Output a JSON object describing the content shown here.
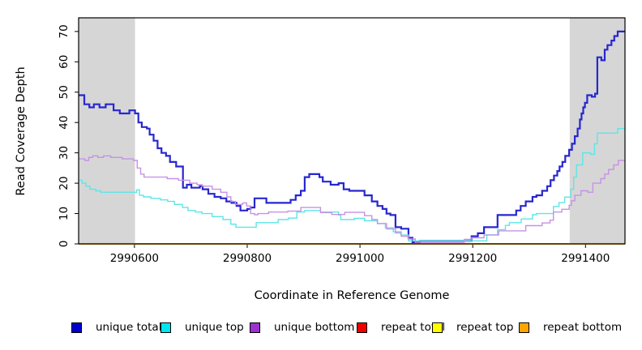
{
  "chart_data": {
    "type": "line",
    "step": true,
    "title": "",
    "xlabel": "Coordinate in Reference Genome",
    "ylabel": "Read Coverage Depth",
    "xlim": [
      2990501,
      2991470
    ],
    "ylim": [
      0,
      74.5
    ],
    "x_ticks": [
      "2990600",
      "2990800",
      "2991000",
      "2991200",
      "2991400"
    ],
    "x_tick_values": [
      2990600,
      2990800,
      2991000,
      2991200,
      2991400
    ],
    "y_ticks": [
      "0",
      "10",
      "20",
      "30",
      "40",
      "50",
      "60",
      "70"
    ],
    "y_tick_values": [
      0,
      10,
      20,
      30,
      40,
      50,
      60,
      70
    ],
    "grid": false,
    "legend_position": "bottom",
    "shaded_regions": [
      {
        "from": 2990501,
        "to": 2990601,
        "color": "#d6d6d6"
      },
      {
        "from": 2991372,
        "to": 2991470,
        "color": "#d6d6d6"
      }
    ],
    "series": [
      {
        "name": "unique total",
        "color": "#2727cf",
        "legend_color": "#0000cd",
        "line_width": 2.2,
        "points": [
          [
            2990501,
            49
          ],
          [
            2990511,
            46
          ],
          [
            2990520,
            45
          ],
          [
            2990528,
            46
          ],
          [
            2990538,
            45
          ],
          [
            2990549,
            46
          ],
          [
            2990563,
            44
          ],
          [
            2990574,
            43
          ],
          [
            2990591,
            44
          ],
          [
            2990601,
            43
          ],
          [
            2990607,
            40
          ],
          [
            2990613,
            38.5
          ],
          [
            2990622,
            38
          ],
          [
            2990627,
            36
          ],
          [
            2990634,
            34
          ],
          [
            2990641,
            31.5
          ],
          [
            2990648,
            30
          ],
          [
            2990656,
            29
          ],
          [
            2990663,
            27
          ],
          [
            2990674,
            25.5
          ],
          [
            2990686,
            18.5
          ],
          [
            2990693,
            19.5
          ],
          [
            2990701,
            18.5
          ],
          [
            2990716,
            19
          ],
          [
            2990721,
            18
          ],
          [
            2990731,
            16.5
          ],
          [
            2990742,
            15.5
          ],
          [
            2990753,
            15
          ],
          [
            2990763,
            14
          ],
          [
            2990772,
            13.5
          ],
          [
            2990781,
            12.5
          ],
          [
            2990788,
            11
          ],
          [
            2990800,
            11.5
          ],
          [
            2990806,
            12
          ],
          [
            2990813,
            15
          ],
          [
            2990834,
            13.5
          ],
          [
            2990877,
            14.5
          ],
          [
            2990886,
            16
          ],
          [
            2990895,
            17.5
          ],
          [
            2990902,
            22
          ],
          [
            2990910,
            23
          ],
          [
            2990928,
            22
          ],
          [
            2990934,
            20.5
          ],
          [
            2990948,
            19.5
          ],
          [
            2990962,
            20
          ],
          [
            2990971,
            18
          ],
          [
            2990981,
            17.5
          ],
          [
            2991008,
            16
          ],
          [
            2991021,
            14
          ],
          [
            2991031,
            12.5
          ],
          [
            2991040,
            11.5
          ],
          [
            2991047,
            10
          ],
          [
            2991054,
            9.5
          ],
          [
            2991063,
            5.5
          ],
          [
            2991073,
            5
          ],
          [
            2991086,
            2
          ],
          [
            2991093,
            0.5
          ],
          [
            2991106,
            1
          ],
          [
            2991198,
            2.5
          ],
          [
            2991209,
            3.5
          ],
          [
            2991220,
            5.5
          ],
          [
            2991244,
            9.5
          ],
          [
            2991277,
            11
          ],
          [
            2991285,
            12.5
          ],
          [
            2991294,
            14
          ],
          [
            2991306,
            15.5
          ],
          [
            2991313,
            16
          ],
          [
            2991323,
            17.5
          ],
          [
            2991332,
            19
          ],
          [
            2991338,
            21
          ],
          [
            2991344,
            22.5
          ],
          [
            2991350,
            24
          ],
          [
            2991354,
            25.5
          ],
          [
            2991359,
            27
          ],
          [
            2991364,
            29
          ],
          [
            2991371,
            31
          ],
          [
            2991376,
            33
          ],
          [
            2991381,
            35.5
          ],
          [
            2991386,
            38
          ],
          [
            2991390,
            41
          ],
          [
            2991393,
            43
          ],
          [
            2991396,
            45
          ],
          [
            2991399,
            46.5
          ],
          [
            2991403,
            49
          ],
          [
            2991411,
            48.5
          ],
          [
            2991417,
            49.5
          ],
          [
            2991421,
            61.5
          ],
          [
            2991428,
            60.5
          ],
          [
            2991434,
            64
          ],
          [
            2991439,
            65.5
          ],
          [
            2991446,
            67
          ],
          [
            2991451,
            68.5
          ],
          [
            2991457,
            70
          ]
        ]
      },
      {
        "name": "unique top",
        "color": "#5fe5e5",
        "legend_color": "#00e5ee",
        "line_width": 1.4,
        "points": [
          [
            2990501,
            21
          ],
          [
            2990507,
            20
          ],
          [
            2990514,
            19
          ],
          [
            2990521,
            18
          ],
          [
            2990531,
            17.5
          ],
          [
            2990540,
            17
          ],
          [
            2990600,
            17
          ],
          [
            2990604,
            17.8
          ],
          [
            2990609,
            16
          ],
          [
            2990616,
            15.5
          ],
          [
            2990629,
            15
          ],
          [
            2990646,
            14.5
          ],
          [
            2990659,
            14
          ],
          [
            2990671,
            13
          ],
          [
            2990685,
            12
          ],
          [
            2990695,
            11
          ],
          [
            2990708,
            10.5
          ],
          [
            2990720,
            10
          ],
          [
            2990738,
            9
          ],
          [
            2990757,
            8
          ],
          [
            2990771,
            6.5
          ],
          [
            2990780,
            5.5
          ],
          [
            2990816,
            7
          ],
          [
            2990855,
            8
          ],
          [
            2990873,
            8.5
          ],
          [
            2990888,
            10.5
          ],
          [
            2990902,
            11
          ],
          [
            2990930,
            10.5
          ],
          [
            2990962,
            9.5
          ],
          [
            2990966,
            8
          ],
          [
            2990990,
            8.4
          ],
          [
            2991008,
            7.6
          ],
          [
            2991031,
            6.7
          ],
          [
            2991045,
            5.3
          ],
          [
            2991059,
            4
          ],
          [
            2991073,
            2.9
          ],
          [
            2991086,
            1
          ],
          [
            2991220,
            1
          ],
          [
            2991225,
            3
          ],
          [
            2991244,
            4.7
          ],
          [
            2991258,
            6.1
          ],
          [
            2991265,
            7
          ],
          [
            2991286,
            8.2
          ],
          [
            2991306,
            9.6
          ],
          [
            2991313,
            10
          ],
          [
            2991343,
            12.3
          ],
          [
            2991353,
            13.6
          ],
          [
            2991363,
            15.4
          ],
          [
            2991374,
            18
          ],
          [
            2991379,
            22
          ],
          [
            2991384,
            26
          ],
          [
            2991395,
            30
          ],
          [
            2991409,
            29.5
          ],
          [
            2991416,
            33
          ],
          [
            2991421,
            36.5
          ],
          [
            2991457,
            38
          ]
        ]
      },
      {
        "name": "unique bottom",
        "color": "#c792e2",
        "legend_color": "#9a32cd",
        "line_width": 1.4,
        "points": [
          [
            2990501,
            28
          ],
          [
            2990512,
            27.5
          ],
          [
            2990519,
            28.5
          ],
          [
            2990526,
            29
          ],
          [
            2990535,
            28.5
          ],
          [
            2990545,
            29
          ],
          [
            2990558,
            28.5
          ],
          [
            2990578,
            28
          ],
          [
            2990598,
            27.5
          ],
          [
            2990605,
            25
          ],
          [
            2990611,
            23
          ],
          [
            2990617,
            22
          ],
          [
            2990658,
            21.5
          ],
          [
            2990678,
            21
          ],
          [
            2990698,
            20
          ],
          [
            2990711,
            19.5
          ],
          [
            2990720,
            19
          ],
          [
            2990738,
            18
          ],
          [
            2990753,
            17
          ],
          [
            2990764,
            15.5
          ],
          [
            2990771,
            14
          ],
          [
            2990779,
            13
          ],
          [
            2990792,
            13.5
          ],
          [
            2990799,
            12.5
          ],
          [
            2990806,
            10
          ],
          [
            2990813,
            9.6
          ],
          [
            2990819,
            10
          ],
          [
            2990838,
            10.5
          ],
          [
            2990872,
            10.8
          ],
          [
            2990895,
            12
          ],
          [
            2990930,
            10.3
          ],
          [
            2990950,
            9.7
          ],
          [
            2990973,
            10.4
          ],
          [
            2991008,
            9.3
          ],
          [
            2991021,
            8
          ],
          [
            2991031,
            6.7
          ],
          [
            2991047,
            4.9
          ],
          [
            2991063,
            3.6
          ],
          [
            2991073,
            2.5
          ],
          [
            2991086,
            1.6
          ],
          [
            2991098,
            0.5
          ],
          [
            2991185,
            1.5
          ],
          [
            2991198,
            2
          ],
          [
            2991220,
            2.9
          ],
          [
            2991246,
            4.3
          ],
          [
            2991294,
            6
          ],
          [
            2991323,
            6.9
          ],
          [
            2991337,
            7.8
          ],
          [
            2991343,
            10.5
          ],
          [
            2991358,
            11.4
          ],
          [
            2991371,
            12.7
          ],
          [
            2991375,
            14.2
          ],
          [
            2991381,
            16
          ],
          [
            2991392,
            17.5
          ],
          [
            2991404,
            17
          ],
          [
            2991413,
            20
          ],
          [
            2991427,
            21.5
          ],
          [
            2991434,
            23
          ],
          [
            2991441,
            24.5
          ],
          [
            2991450,
            26
          ],
          [
            2991458,
            27.5
          ]
        ]
      },
      {
        "name": "repeat total",
        "color": "#dd0000",
        "legend_color": "#ee0000",
        "line_width": 1.4,
        "points": [
          [
            2990501,
            0
          ],
          [
            2991470,
            0
          ]
        ]
      },
      {
        "name": "repeat top",
        "color": "#ffff00",
        "legend_color": "#ffff00",
        "line_width": 1.4,
        "points": [
          [
            2990501,
            0
          ],
          [
            2991470,
            0
          ]
        ]
      },
      {
        "name": "repeat bottom",
        "color": "#ffa500",
        "legend_color": "#ffa500",
        "line_width": 1.7,
        "points": [
          [
            2990501,
            0
          ],
          [
            2991470,
            0
          ]
        ]
      }
    ]
  },
  "legend": {
    "items": [
      {
        "label": "unique total",
        "color": "#0000cd"
      },
      {
        "label": "unique top",
        "color": "#00e5ee"
      },
      {
        "label": "unique bottom",
        "color": "#9a32cd"
      },
      {
        "label": "repeat total",
        "color": "#ee0000"
      },
      {
        "label": "repeat top",
        "color": "#ffff00"
      },
      {
        "label": "repeat bottom",
        "color": "#ffa500"
      }
    ]
  }
}
